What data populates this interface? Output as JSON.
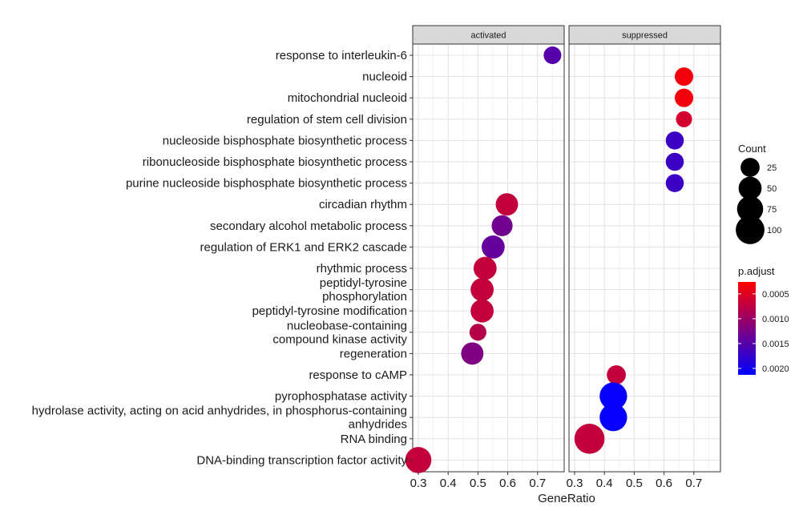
{
  "chart_data": {
    "type": "scatter",
    "xlabel": "GeneRatio",
    "ylabel": "",
    "xlim": [
      0.28,
      0.77
    ],
    "x_ticks": [
      "0.3",
      "0.4",
      "0.5",
      "0.6",
      "0.7"
    ],
    "grid": true,
    "legend_placement": "right",
    "panels": [
      "activated",
      "suppressed"
    ],
    "categories": [
      "response to interleukin-6",
      "nucleoid",
      "mitochondrial nucleoid",
      "regulation of stem cell division",
      "nucleoside bisphosphate biosynthetic process",
      "ribonucleoside bisphosphate biosynthetic process",
      "purine nucleoside bisphosphate biosynthetic process",
      "circadian rhythm",
      "secondary alcohol metabolic process",
      "regulation of ERK1 and ERK2 cascade",
      "rhythmic process",
      "peptidyl-tyrosine\nphosphorylation",
      "peptidyl-tyrosine modification",
      "nucleobase-containing\ncompound kinase activity",
      "regeneration",
      "response to cAMP",
      "pyrophosphatase activity",
      "hydrolase activity, acting on acid anhydrides, in phosphorus-containing\nanhydrides",
      "RNA binding",
      "DNA-binding transcription factor activity"
    ],
    "points": [
      {
        "panel": "activated",
        "category": "response to interleukin-6",
        "x": 0.75,
        "count": 18,
        "p_adjust": 0.0015
      },
      {
        "panel": "suppressed",
        "category": "nucleoid",
        "x": 0.667,
        "count": 22,
        "p_adjust": 0.00035
      },
      {
        "panel": "suppressed",
        "category": "mitochondrial nucleoid",
        "x": 0.667,
        "count": 22,
        "p_adjust": 0.00035
      },
      {
        "panel": "suppressed",
        "category": "regulation of stem cell division",
        "x": 0.667,
        "count": 12,
        "p_adjust": 0.0006
      },
      {
        "panel": "suppressed",
        "category": "nucleoside bisphosphate biosynthetic process",
        "x": 0.636,
        "count": 20,
        "p_adjust": 0.0017
      },
      {
        "panel": "suppressed",
        "category": "ribonucleoside bisphosphate biosynthetic process",
        "x": 0.636,
        "count": 20,
        "p_adjust": 0.0017
      },
      {
        "panel": "suppressed",
        "category": "purine nucleoside bisphosphate biosynthetic process",
        "x": 0.636,
        "count": 20,
        "p_adjust": 0.0017
      },
      {
        "panel": "activated",
        "category": "circadian rhythm",
        "x": 0.597,
        "count": 45,
        "p_adjust": 0.0007
      },
      {
        "panel": "activated",
        "category": "secondary alcohol metabolic process",
        "x": 0.581,
        "count": 36,
        "p_adjust": 0.0013
      },
      {
        "panel": "activated",
        "category": "regulation of ERK1 and ERK2 cascade",
        "x": 0.551,
        "count": 50,
        "p_adjust": 0.0014
      },
      {
        "panel": "activated",
        "category": "rhythmic process",
        "x": 0.524,
        "count": 50,
        "p_adjust": 0.0007
      },
      {
        "panel": "activated",
        "category": "peptidyl-tyrosine\nphosphorylation",
        "x": 0.514,
        "count": 50,
        "p_adjust": 0.0007
      },
      {
        "panel": "activated",
        "category": "peptidyl-tyrosine modification",
        "x": 0.514,
        "count": 50,
        "p_adjust": 0.0007
      },
      {
        "panel": "activated",
        "category": "nucleobase-containing\ncompound kinase activity",
        "x": 0.5,
        "count": 15,
        "p_adjust": 0.0008
      },
      {
        "panel": "activated",
        "category": "regeneration",
        "x": 0.481,
        "count": 45,
        "p_adjust": 0.0012
      },
      {
        "panel": "suppressed",
        "category": "response to cAMP",
        "x": 0.44,
        "count": 25,
        "p_adjust": 0.0007
      },
      {
        "panel": "suppressed",
        "category": "pyrophosphatase activity",
        "x": 0.43,
        "count": 88,
        "p_adjust": 0.0021
      },
      {
        "panel": "suppressed",
        "category": "hydrolase activity, acting on acid anhydrides, in phosphorus-containing\nanhydrides",
        "x": 0.43,
        "count": 88,
        "p_adjust": 0.0021
      },
      {
        "panel": "suppressed",
        "category": "RNA binding",
        "x": 0.35,
        "count": 115,
        "p_adjust": 0.0007
      },
      {
        "panel": "activated",
        "category": "DNA-binding transcription factor activity",
        "x": 0.3,
        "count": 75,
        "p_adjust": 0.0007
      }
    ],
    "legend_size": {
      "title": "Count",
      "items": [
        25,
        50,
        75,
        100
      ],
      "labels": [
        "25",
        "50",
        "75",
        "100"
      ]
    },
    "legend_color": {
      "title": "p.adjust",
      "range": [
        0.00026,
        0.00213
      ],
      "ticks": [
        0.0005,
        0.001,
        0.0015,
        0.002
      ],
      "labels": [
        "0.0005",
        "0.0010",
        "0.0015",
        "0.0020"
      ],
      "low_color": "#ff0000",
      "high_color": "#0000ff"
    }
  }
}
